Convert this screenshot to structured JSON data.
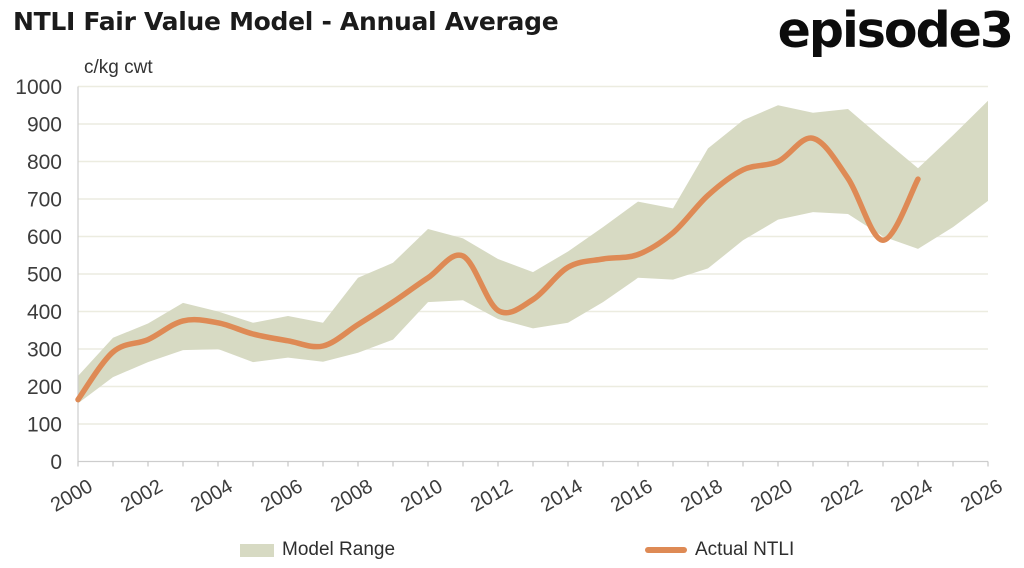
{
  "header": {
    "logo_text": "episode3"
  },
  "colors": {
    "band": "#d7dac3",
    "line": "#de8a55",
    "grid": "#ecece0",
    "axis": "#cdcdcd",
    "tick": "#c6c6c6",
    "text": "#3c3c3c",
    "title": "#1b1b1b",
    "logo": "#0c0c0c"
  },
  "chart_data": {
    "type": "area",
    "title": "NTLI Fair Value Model - Annual Average",
    "ylabel": "c/kg cwt",
    "xlabel": "",
    "grid": "horizontal",
    "legend_position": "bottom",
    "ylim": [
      0,
      1000
    ],
    "yticks": [
      0,
      100,
      200,
      300,
      400,
      500,
      600,
      700,
      800,
      900,
      1000
    ],
    "xticks_labeled": [
      2000,
      2002,
      2004,
      2006,
      2008,
      2010,
      2012,
      2014,
      2016,
      2018,
      2020,
      2022,
      2024,
      2026
    ],
    "x": [
      2000,
      2001,
      2002,
      2003,
      2004,
      2005,
      2006,
      2007,
      2008,
      2009,
      2010,
      2011,
      2012,
      2013,
      2014,
      2015,
      2016,
      2017,
      2018,
      2019,
      2020,
      2021,
      2022,
      2023,
      2024,
      2025,
      2026
    ],
    "series": [
      {
        "name": "Model Range",
        "type": "band",
        "color": "#d7dac3",
        "upper": [
          228,
          330,
          368,
          423,
          400,
          370,
          388,
          370,
          490,
          530,
          620,
          595,
          540,
          505,
          560,
          625,
          693,
          675,
          835,
          910,
          950,
          930,
          940,
          860,
          782,
          870,
          962
        ],
        "lower": [
          155,
          225,
          265,
          297,
          300,
          265,
          277,
          266,
          290,
          325,
          425,
          430,
          380,
          355,
          370,
          425,
          490,
          485,
          515,
          590,
          645,
          665,
          660,
          600,
          567,
          625,
          695
        ]
      },
      {
        "name": "Actual NTLI",
        "type": "line",
        "color": "#de8a55",
        "x_end": 2024,
        "values": [
          165,
          292,
          325,
          375,
          370,
          340,
          322,
          308,
          365,
          425,
          490,
          548,
          403,
          432,
          518,
          540,
          552,
          610,
          710,
          778,
          800,
          862,
          755,
          590,
          753
        ]
      }
    ]
  }
}
